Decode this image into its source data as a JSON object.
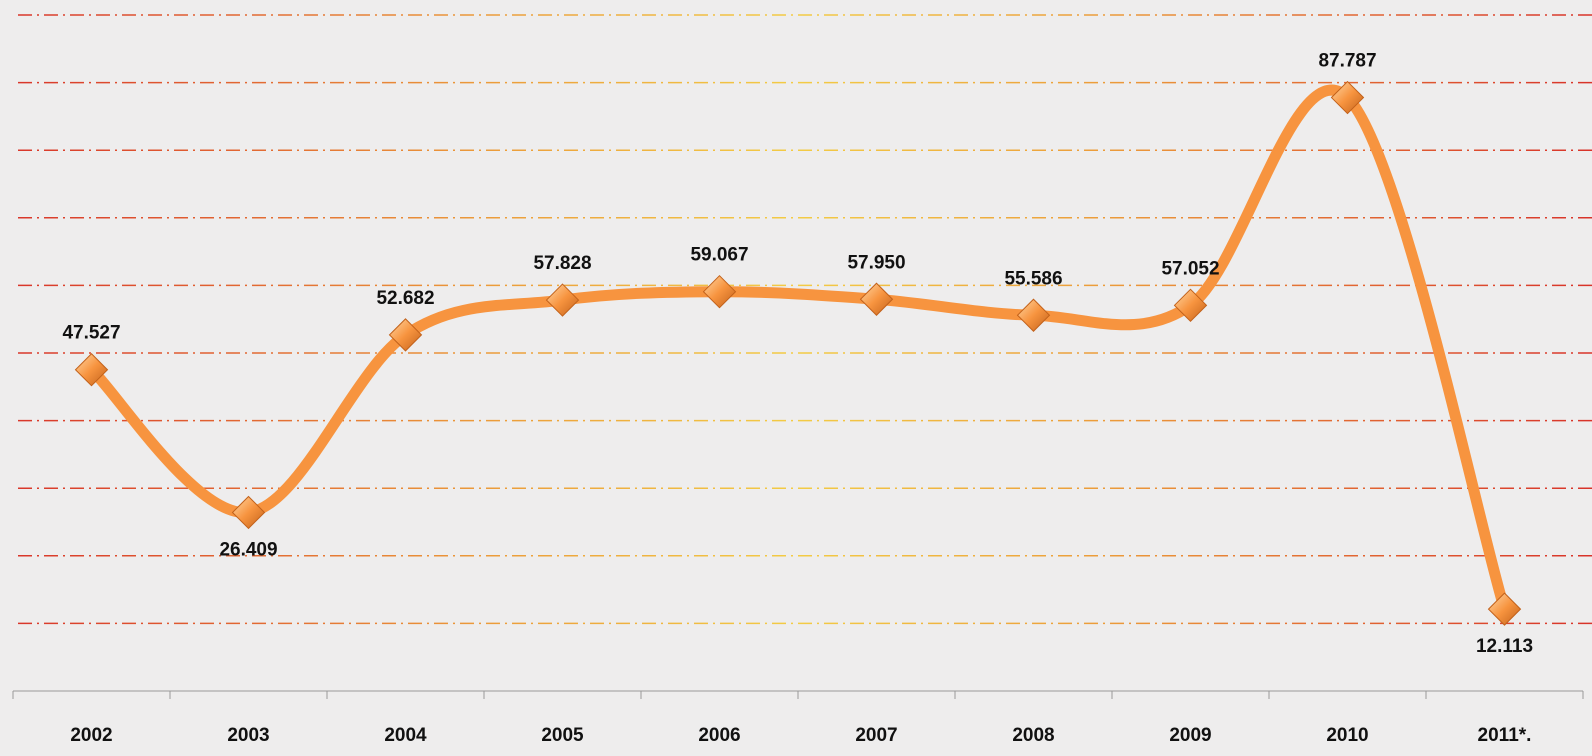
{
  "chart_data": {
    "type": "line",
    "categories": [
      "2002",
      "2003",
      "2004",
      "2005",
      "2006",
      "2007",
      "2008",
      "2009",
      "2010",
      "2011*."
    ],
    "values": [
      47.527,
      26.409,
      52.682,
      57.828,
      59.067,
      57.95,
      55.586,
      57.052,
      87.787,
      12.113
    ],
    "value_labels": [
      "47.527",
      "26.409",
      "52.682",
      "57.828",
      "59.067",
      "57.950",
      "55.586",
      "57.052",
      "87.787",
      "12.113"
    ],
    "color": "#f7943f",
    "ylim": [
      0,
      100
    ],
    "yticks": [
      0,
      10,
      20,
      30,
      40,
      50,
      60,
      70,
      80,
      90,
      100
    ],
    "grid": true
  }
}
